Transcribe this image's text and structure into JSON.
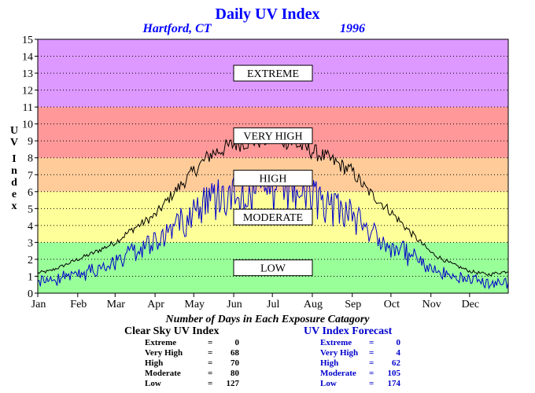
{
  "chart_data": {
    "type": "line",
    "title": "Daily UV Index",
    "subtitle_left": "Hartford, CT",
    "subtitle_right": "1996",
    "ylabel": "UV Index",
    "ylim": [
      0,
      15
    ],
    "yticks": [
      "0",
      "1",
      "2",
      "3",
      "4",
      "5",
      "6",
      "7",
      "8",
      "9",
      "10",
      "11",
      "12",
      "13",
      "14",
      "15"
    ],
    "xlim": [
      1,
      366
    ],
    "months": [
      {
        "label": "Jan",
        "day": 1
      },
      {
        "label": "Feb",
        "day": 32
      },
      {
        "label": "Mar",
        "day": 61
      },
      {
        "label": "Apr",
        "day": 92
      },
      {
        "label": "May",
        "day": 122
      },
      {
        "label": "Jun",
        "day": 153
      },
      {
        "label": "Jul",
        "day": 183
      },
      {
        "label": "Aug",
        "day": 214
      },
      {
        "label": "Sep",
        "day": 245
      },
      {
        "label": "Oct",
        "day": 275
      },
      {
        "label": "Nov",
        "day": 306
      },
      {
        "label": "Dec",
        "day": 336
      }
    ],
    "zones": [
      {
        "label": "LOW",
        "from": 0,
        "to": 3,
        "color": "#99ff99"
      },
      {
        "label": "MODERATE",
        "from": 3,
        "to": 6,
        "color": "#ffff99"
      },
      {
        "label": "HIGH",
        "from": 6,
        "to": 8,
        "color": "#ffcc99"
      },
      {
        "label": "VERY HIGH",
        "from": 8,
        "to": 11,
        "color": "#ff9999"
      },
      {
        "label": "EXTREME",
        "from": 11,
        "to": 15,
        "color": "#dd99ff"
      }
    ],
    "grid": true,
    "series": [
      {
        "name": "Clear Sky UV Index",
        "color": "#000000",
        "x": [
          1,
          10,
          20,
          32,
          45,
          61,
          75,
          92,
          105,
          122,
          135,
          153,
          165,
          183,
          195,
          214,
          225,
          245,
          255,
          275,
          290,
          306,
          320,
          336,
          350,
          366
        ],
        "y": [
          1.2,
          1.3,
          1.6,
          2.0,
          2.4,
          3.0,
          3.8,
          4.6,
          5.8,
          7.2,
          8.2,
          8.8,
          9.0,
          9.1,
          9.0,
          8.4,
          8.0,
          7.2,
          6.2,
          4.8,
          3.6,
          2.4,
          1.8,
          1.3,
          1.1,
          1.3
        ]
      },
      {
        "name": "UV Index Forecast",
        "color": "#0000cc",
        "x": [
          1,
          10,
          20,
          32,
          45,
          61,
          75,
          92,
          105,
          122,
          135,
          153,
          165,
          183,
          195,
          214,
          225,
          245,
          255,
          275,
          290,
          306,
          320,
          336,
          350,
          366
        ],
        "y": [
          0.9,
          0.8,
          1.1,
          1.3,
          1.6,
          2.3,
          2.8,
          3.5,
          4.5,
          5.8,
          6.5,
          7.1,
          7.0,
          6.9,
          7.2,
          6.6,
          6.2,
          5.6,
          4.2,
          3.4,
          2.6,
          1.6,
          1.2,
          0.9,
          0.7,
          0.8
        ]
      }
    ]
  },
  "summary": {
    "title": "Number of Days in Each Exposure Catagory",
    "clear_sky": {
      "heading": "Clear Sky UV Index",
      "rows": [
        {
          "label": "Extreme",
          "value": "0"
        },
        {
          "label": "Very High",
          "value": "68"
        },
        {
          "label": "High",
          "value": "70"
        },
        {
          "label": "Moderate",
          "value": "80"
        },
        {
          "label": "Low",
          "value": "127"
        }
      ]
    },
    "forecast": {
      "heading": "UV Index Forecast",
      "rows": [
        {
          "label": "Extreme",
          "value": "0"
        },
        {
          "label": "Very High",
          "value": "4"
        },
        {
          "label": "High",
          "value": "62"
        },
        {
          "label": "Moderate",
          "value": "105"
        },
        {
          "label": "Low",
          "value": "174"
        }
      ]
    }
  },
  "colors": {
    "title": "#0000ff",
    "forecast_text": "#0000cc",
    "clear_text": "#000000"
  }
}
